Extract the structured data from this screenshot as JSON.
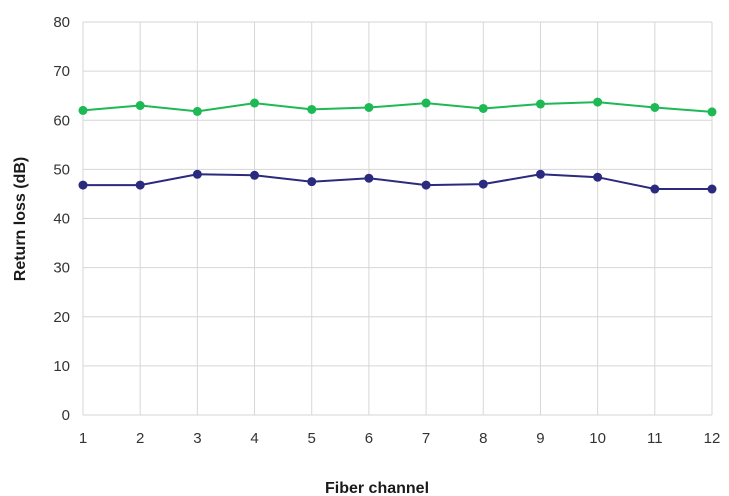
{
  "chart_data": {
    "type": "line",
    "title": "",
    "xlabel": "Fiber channel",
    "ylabel": "Return loss (dB)",
    "x": [
      1,
      2,
      3,
      4,
      5,
      6,
      7,
      8,
      9,
      10,
      11,
      12
    ],
    "xlim": [
      1,
      12
    ],
    "ylim": [
      0,
      80
    ],
    "yticks": [
      0,
      10,
      20,
      30,
      40,
      50,
      60,
      70,
      80
    ],
    "grid": true,
    "legend": "none",
    "series": [
      {
        "color": "#1db954",
        "values": [
          62.0,
          63.0,
          61.8,
          63.5,
          62.2,
          62.6,
          63.5,
          62.4,
          63.3,
          63.7,
          62.6,
          61.7
        ]
      },
      {
        "color": "#2a2a7e",
        "values": [
          46.8,
          46.8,
          49.0,
          48.8,
          47.5,
          48.2,
          46.8,
          47.0,
          49.0,
          48.4,
          46.0,
          46.0
        ]
      }
    ]
  }
}
